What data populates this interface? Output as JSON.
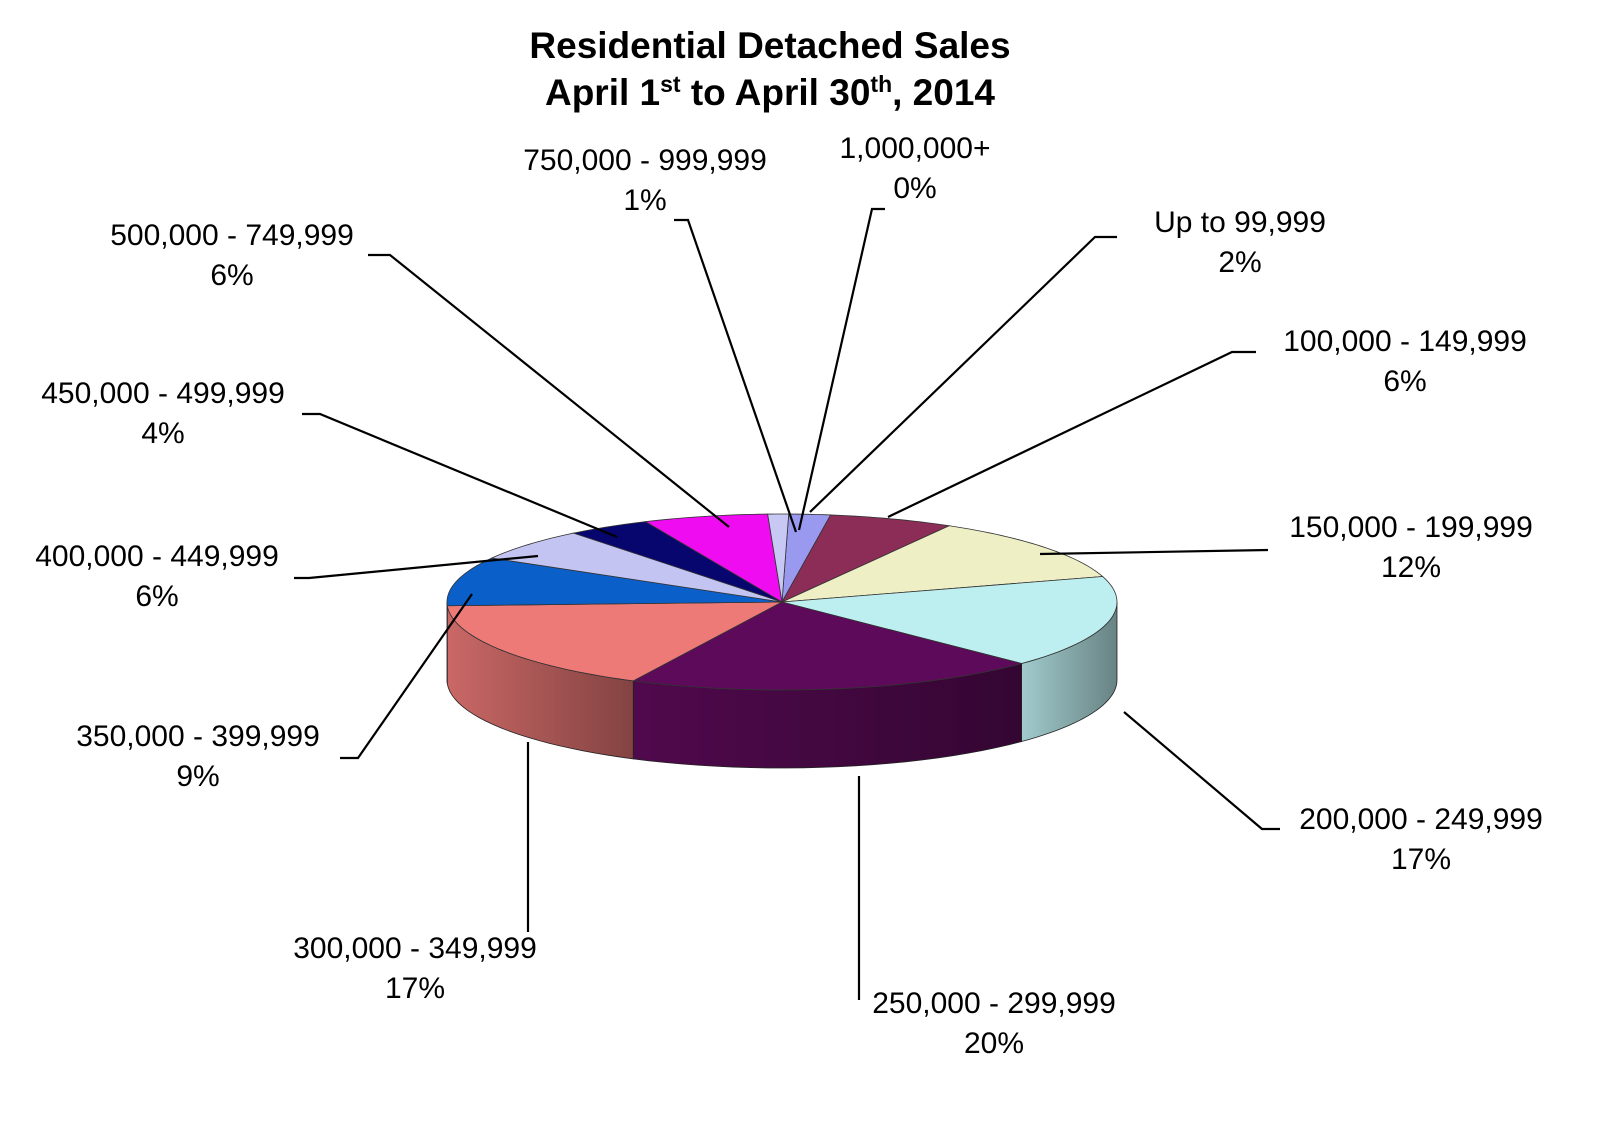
{
  "chart_data": {
    "type": "pie",
    "title_line1": "Residential Detached Sales",
    "title_line2": {
      "pre": "April 1",
      "sup1": "st",
      "mid": " to April 30",
      "sup2": "th",
      "post": ", 2014"
    },
    "slices": [
      {
        "label": "Up to 99,999",
        "value": 2,
        "pct_label": "2%",
        "color": "#9999F0"
      },
      {
        "label": "100,000 - 149,999",
        "value": 6,
        "pct_label": "6%",
        "color": "#8C2D57"
      },
      {
        "label": "150,000 - 199,999",
        "value": 12,
        "pct_label": "12%",
        "color": "#EFEFC6"
      },
      {
        "label": "200,000 - 249,999",
        "value": 17,
        "pct_label": "17%",
        "color": "#BDEFF0"
      },
      {
        "label": "250,000 - 299,999",
        "value": 20,
        "pct_label": "20%",
        "color": "#5E0A5A"
      },
      {
        "label": "300,000 - 349,999",
        "value": 17,
        "pct_label": "17%",
        "color": "#EE7A78"
      },
      {
        "label": "350,000 - 399,999",
        "value": 9,
        "pct_label": "9%",
        "color": "#0A5FC8"
      },
      {
        "label": "400,000 - 449,999",
        "value": 6,
        "pct_label": "6%",
        "color": "#C4C4F2"
      },
      {
        "label": "450,000 - 499,999",
        "value": 4,
        "pct_label": "4%",
        "color": "#06066E"
      },
      {
        "label": "500,000 - 749,999",
        "value": 6,
        "pct_label": "6%",
        "color": "#F00CF0"
      },
      {
        "label": "750,000 - 999,999",
        "value": 1,
        "pct_label": "1%",
        "color": "#C8C8F5"
      },
      {
        "label": "1,000,000+",
        "value": 0,
        "pct_label": "0%",
        "color": "#5A5AA0"
      }
    ]
  }
}
